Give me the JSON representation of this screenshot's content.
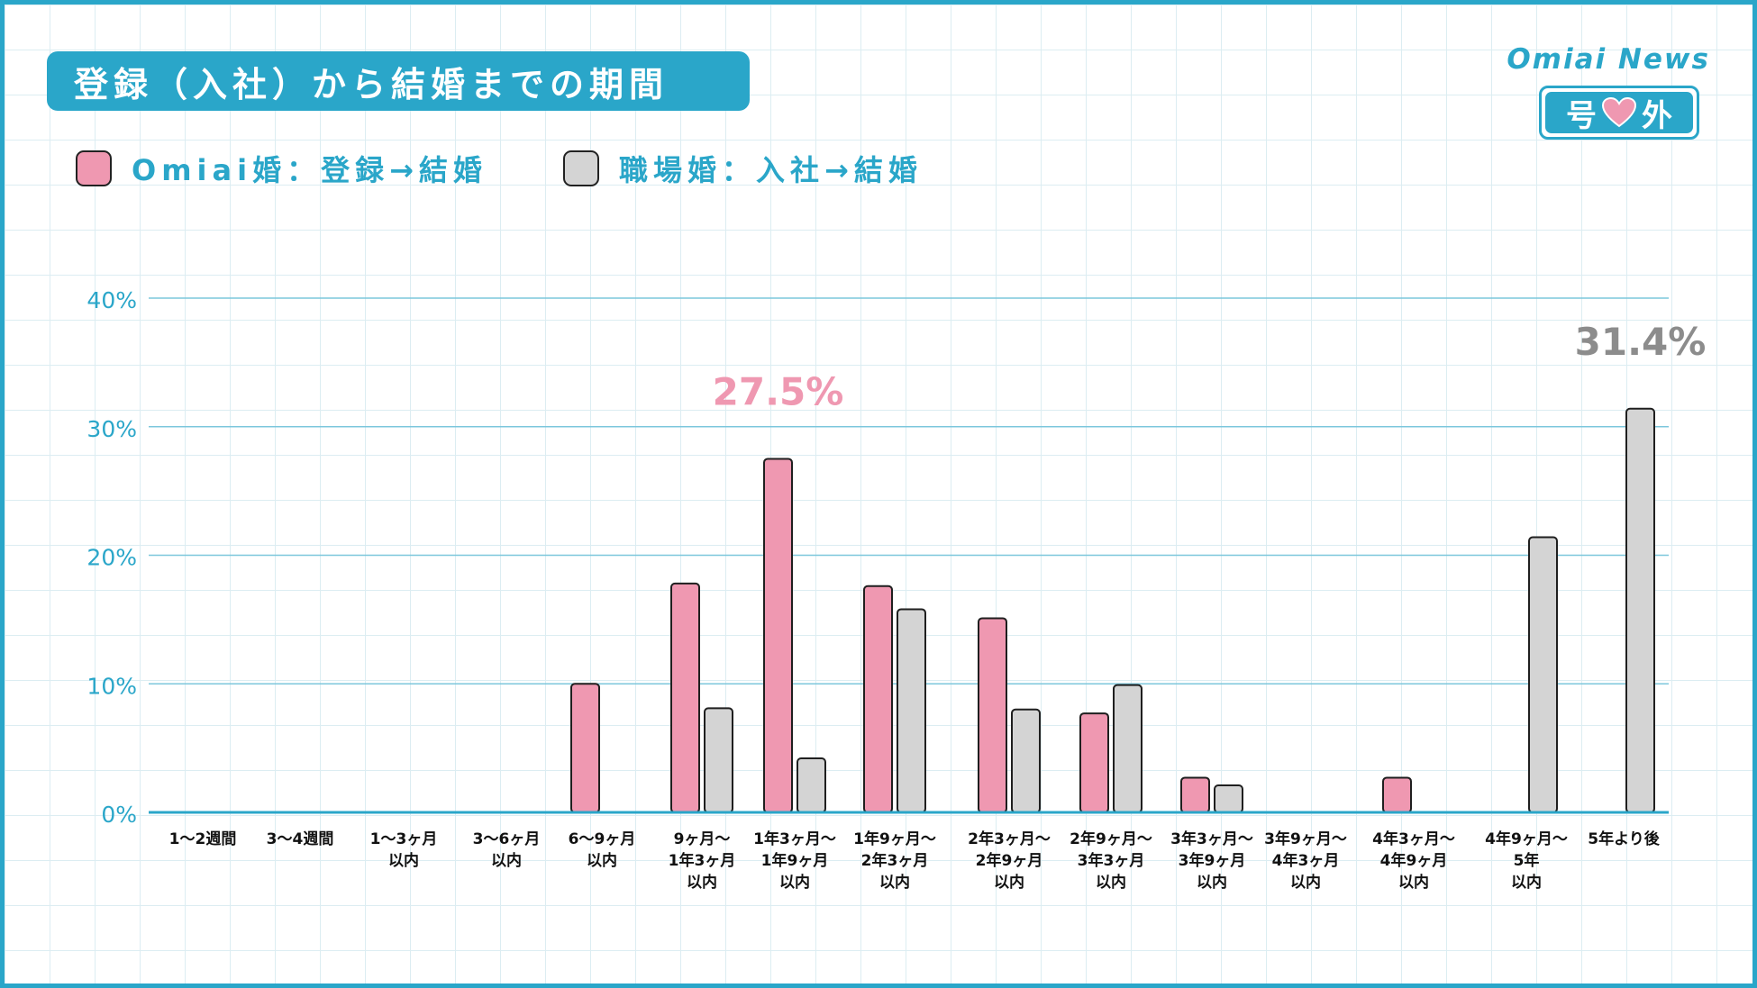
{
  "header": {
    "title": "登録（入社）から結婚までの期間",
    "brand": {
      "name": "Omiai News",
      "badge_left": "号",
      "badge_icon": "heart-icon",
      "badge_right": "外"
    }
  },
  "legend": [
    {
      "label": "Omiai婚：登録→結婚",
      "color": "#ef98b1"
    },
    {
      "label": "職場婚：入社→結婚",
      "color": "#d4d4d4"
    }
  ],
  "chart_data": {
    "type": "bar",
    "categories": [
      [
        "1～2週間"
      ],
      [
        "3～4週間"
      ],
      [
        "1～3ヶ月",
        "以内"
      ],
      [
        "3～6ヶ月",
        "以内"
      ],
      [
        "6～9ヶ月",
        "以内"
      ],
      [
        "9ヶ月～",
        "1年3ヶ月",
        "以内"
      ],
      [
        "1年3ヶ月～",
        "1年9ヶ月",
        "以内"
      ],
      [
        "1年9ヶ月～",
        "2年3ヶ月",
        "以内"
      ],
      [
        "2年3ヶ月～",
        "2年9ヶ月",
        "以内"
      ],
      [
        "2年9ヶ月～",
        "3年3ヶ月",
        "以内"
      ],
      [
        "3年3ヶ月～",
        "3年9ヶ月",
        "以内"
      ],
      [
        "3年9ヶ月～",
        "4年3ヶ月",
        "以内"
      ],
      [
        "4年3ヶ月～",
        "4年9ヶ月",
        "以内"
      ],
      [
        "4年9ヶ月～",
        "5年",
        "以内"
      ],
      [
        "5年より後"
      ]
    ],
    "series": [
      {
        "name": "Omiai婚：登録→結婚",
        "color": "#ef98b1",
        "values": [
          0,
          0,
          0,
          0,
          10.0,
          17.8,
          27.5,
          17.6,
          15.1,
          7.7,
          2.7,
          0,
          2.7,
          0,
          0
        ]
      },
      {
        "name": "職場婚：入社→結婚",
        "color": "#d4d4d4",
        "values": [
          0,
          0,
          0,
          0,
          0,
          8.1,
          4.2,
          15.8,
          8.0,
          9.9,
          2.1,
          0,
          0,
          21.4,
          31.4
        ]
      }
    ],
    "ylim": [
      0,
      40
    ],
    "yticks": [
      "0%",
      "10%",
      "20%",
      "30%",
      "40%"
    ],
    "yticks_values": [
      0,
      10,
      20,
      30,
      40
    ],
    "annotations": [
      {
        "text": "27.5%",
        "series": 0,
        "category": 6,
        "color": "#ef98b1"
      },
      {
        "text": "31.4%",
        "series": 1,
        "category": 14,
        "color": "#8c8c8c"
      }
    ],
    "grid": true,
    "axis_color": "#2aa6c9"
  }
}
